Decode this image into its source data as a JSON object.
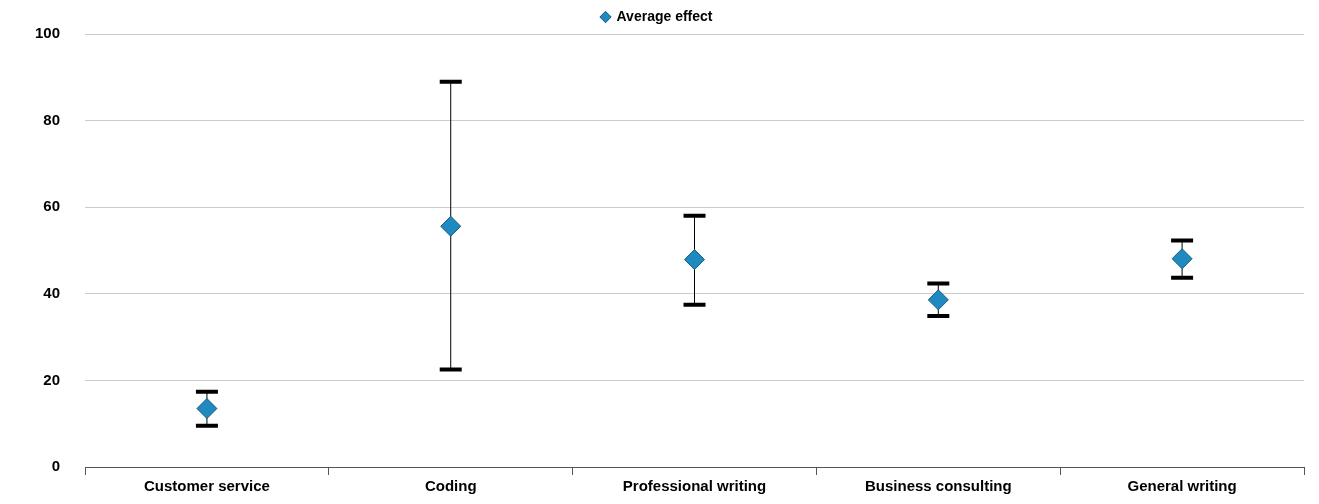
{
  "chart_data": {
    "type": "scatter",
    "categories": [
      "Customer service",
      "Coding",
      "Professional writing",
      "Business consulting",
      "General writing"
    ],
    "series": [
      {
        "name": "Average effect",
        "color": "#1f8ac0",
        "values": [
          13.5,
          55.6,
          47.9,
          38.6,
          48.1
        ],
        "errors": [
          [
            9.5,
            17.4
          ],
          [
            22.5,
            89
          ],
          [
            37.5,
            58
          ],
          [
            34.9,
            42.4
          ],
          [
            43.7,
            52.3
          ]
        ]
      }
    ],
    "ylim": [
      0,
      100
    ],
    "yticks": [
      0,
      20,
      40,
      60,
      80,
      100
    ],
    "grid": "y",
    "legend": "top",
    "marker": "diamond"
  }
}
